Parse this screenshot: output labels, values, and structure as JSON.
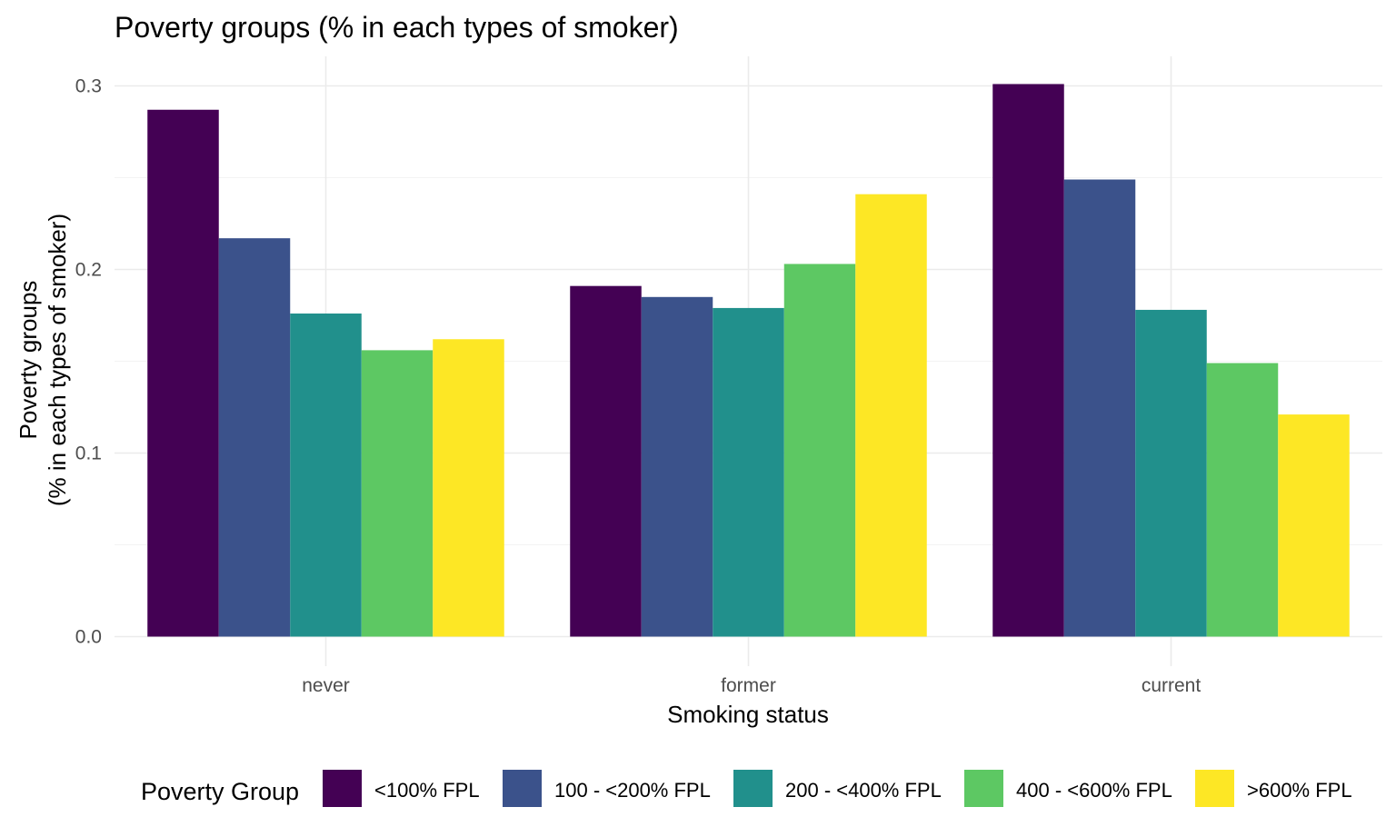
{
  "chart_data": {
    "type": "bar",
    "title": "Poverty groups (% in each types of smoker)",
    "xlabel": "Smoking status",
    "ylabel_lines": [
      "Poverty groups",
      "(% in each types of smoker)"
    ],
    "categories": [
      "never",
      "former",
      "current"
    ],
    "ylim": [
      0,
      0.3
    ],
    "y_ticks": [
      0.0,
      0.1,
      0.2,
      0.3
    ],
    "y_tick_labels": [
      "0.0",
      "0.1",
      "0.2",
      "0.3"
    ],
    "grid": true,
    "legend": {
      "title": "Poverty Group",
      "position": "bottom"
    },
    "series": [
      {
        "name": "<100% FPL",
        "color": "#440154",
        "values": [
          0.287,
          0.191,
          0.301
        ]
      },
      {
        "name": "100 - <200% FPL",
        "color": "#3b528b",
        "values": [
          0.217,
          0.185,
          0.249
        ]
      },
      {
        "name": "200 - <400% FPL",
        "color": "#21908c",
        "values": [
          0.176,
          0.179,
          0.178
        ]
      },
      {
        "name": "400 - <600% FPL",
        "color": "#5dc863",
        "values": [
          0.156,
          0.203,
          0.149
        ]
      },
      {
        "name": ">600% FPL",
        "color": "#fde725",
        "values": [
          0.162,
          0.241,
          0.121
        ]
      }
    ]
  }
}
